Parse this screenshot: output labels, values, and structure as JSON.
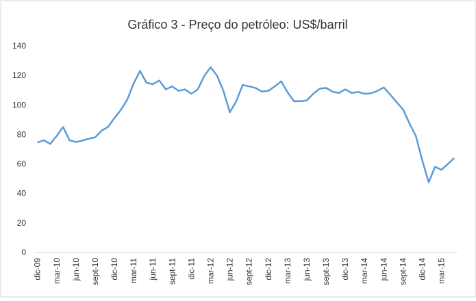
{
  "chart_data": {
    "type": "line",
    "title": "Gráfico 3 - Preço do petróleo: US$/barril",
    "categories": [
      "dic-09",
      null,
      null,
      "mar-10",
      null,
      null,
      "jun-10",
      null,
      null,
      "sept-10",
      null,
      null,
      "dic-10",
      null,
      null,
      "mar-11",
      null,
      null,
      "jun-11",
      null,
      null,
      "sept-11",
      null,
      null,
      "dic-11",
      null,
      null,
      "mar-12",
      null,
      null,
      "jun-12",
      null,
      null,
      "sept-12",
      null,
      null,
      "dic-12",
      null,
      null,
      "mar-13",
      null,
      null,
      "jun-13",
      null,
      null,
      "sept-13",
      null,
      null,
      "dic-13",
      null,
      null,
      "mar-14",
      null,
      null,
      "jun-14",
      null,
      null,
      "sept-14",
      null,
      null,
      "dic-14",
      null,
      null,
      "mar-15",
      null,
      null
    ],
    "series": [
      {
        "name": "Preço do petróleo",
        "color": "#5b9bd5",
        "values": [
          74.5,
          76,
          73.5,
          79,
          85,
          76,
          74.8,
          75.8,
          77,
          78,
          82.5,
          85,
          91,
          96.5,
          103.5,
          114.5,
          123,
          115,
          114,
          116.5,
          110.5,
          112.5,
          109.5,
          110.5,
          107.5,
          110.5,
          119.5,
          125.5,
          119.8,
          109.5,
          95,
          102.5,
          113.5,
          112.5,
          111.5,
          109,
          109.5,
          112.5,
          116,
          108.5,
          102.5,
          102.5,
          103,
          107.5,
          111,
          111.5,
          109,
          108,
          110.5,
          108,
          108.8,
          107.5,
          107.8,
          109.5,
          111.8,
          107,
          101.9,
          97,
          87.5,
          79,
          62.5,
          47.5,
          58,
          56,
          60,
          64
        ]
      }
    ],
    "ylim": [
      0,
      140
    ],
    "yticks": [
      0,
      20,
      40,
      60,
      80,
      100,
      120,
      140
    ],
    "grid": false
  }
}
